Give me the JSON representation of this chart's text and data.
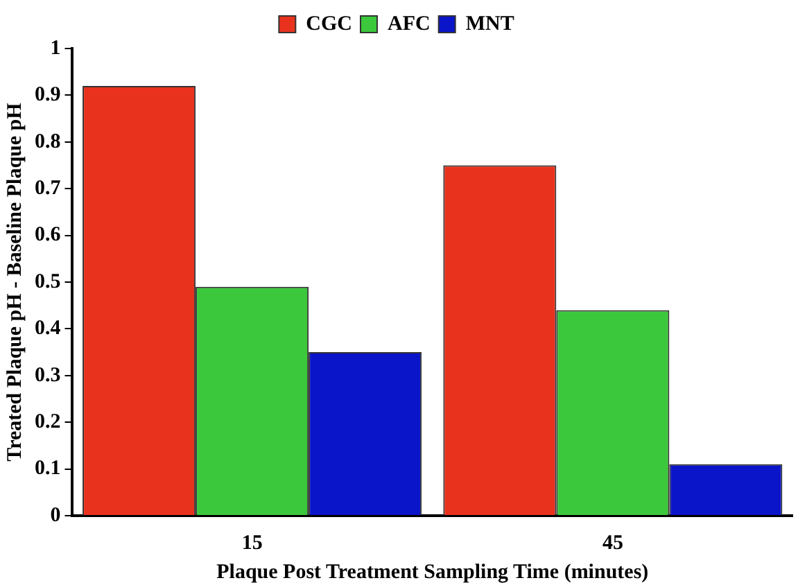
{
  "chart_data": {
    "type": "bar",
    "categories": [
      "15",
      "45"
    ],
    "series": [
      {
        "name": "CGC",
        "color": "#e8321e",
        "values": [
          0.92,
          0.75
        ]
      },
      {
        "name": "AFC",
        "color": "#3cc83c",
        "values": [
          0.49,
          0.44
        ]
      },
      {
        "name": "MNT",
        "color": "#0a14c8",
        "values": [
          0.35,
          0.11
        ]
      }
    ],
    "xlabel": "Plaque Post Treatment Sampling Time (minutes)",
    "ylabel": "Treated Plaque pH - Baseline Plaque pH",
    "ylim": [
      0,
      1
    ],
    "yticks": [
      0,
      0.1,
      0.2,
      0.3,
      0.4,
      0.5,
      0.6,
      0.7,
      0.8,
      0.9,
      1
    ],
    "grid": false,
    "legend": "top"
  }
}
